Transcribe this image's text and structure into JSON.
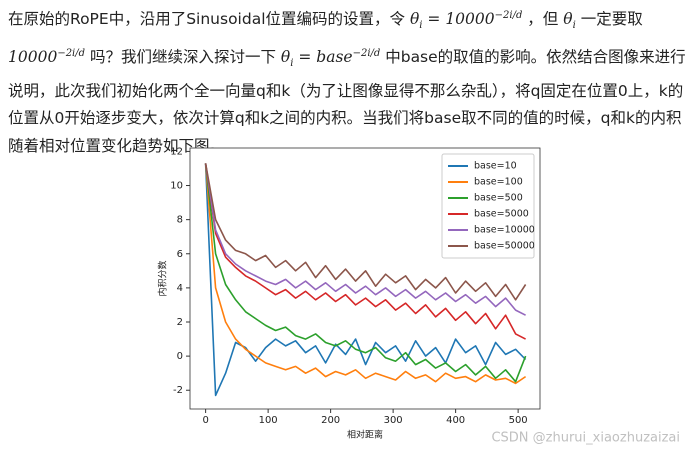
{
  "paragraph": {
    "segments": [
      {
        "text": "在原始的RoPE中，沿用了Sinusoidal位置编码的设置，令 "
      },
      {
        "m": "θ",
        "sub": "i"
      },
      {
        "m": " = 10000",
        "sup": "−2i/d"
      },
      {
        "text": " ，但 "
      },
      {
        "m": "θ",
        "sub": "i"
      },
      {
        "text": " 一定要取 "
      },
      {
        "m": "10000",
        "sup": "−2i/d"
      },
      {
        "text": " 吗？我们继续深入探讨一下 "
      },
      {
        "m": "θ",
        "sub": "i"
      },
      {
        "m": " = base",
        "sup": "−2i/d"
      },
      {
        "text": " 中base的取值的影响。依然结合图像来进行说明，此次我们初始化两个全一向量q和k（为了让图像显得不那么杂乱），将q固定在位置0上，k的位置从0开始逐步变大，依次计算q和k之间的内积。当我们将base取不同的值的时候，q和k的内积随着相对位置变化趋势如下图。"
      }
    ]
  },
  "watermark": "CSDN @zhurui_xiaozhuzaizai",
  "chart_data": {
    "type": "line",
    "xlabel": "相对距离",
    "ylabel": "内积分数",
    "x": [
      0,
      16,
      32,
      48,
      64,
      80,
      96,
      112,
      128,
      144,
      160,
      176,
      192,
      208,
      224,
      240,
      256,
      272,
      288,
      304,
      320,
      336,
      352,
      368,
      384,
      400,
      416,
      432,
      448,
      464,
      480,
      496,
      512
    ],
    "series": [
      {
        "name": "base=10",
        "color": "#1f77b4",
        "values": [
          11.3,
          -2.3,
          -1.0,
          0.8,
          0.5,
          -0.3,
          0.5,
          1.0,
          0.6,
          0.9,
          0.2,
          0.6,
          -0.4,
          0.7,
          0.1,
          1.0,
          -0.5,
          0.8,
          0.2,
          0.6,
          -0.3,
          0.9,
          0.0,
          0.5,
          -0.4,
          1.0,
          0.2,
          0.6,
          -0.5,
          0.8,
          0.1,
          0.4,
          -0.2
        ]
      },
      {
        "name": "base=100",
        "color": "#ff7f0e",
        "values": [
          11.3,
          4.0,
          2.0,
          1.0,
          0.4,
          0.0,
          -0.4,
          -0.6,
          -0.8,
          -0.6,
          -1.0,
          -0.7,
          -1.2,
          -0.9,
          -1.1,
          -0.8,
          -1.3,
          -1.0,
          -1.2,
          -1.4,
          -0.9,
          -1.3,
          -1.1,
          -1.5,
          -1.0,
          -1.3,
          -1.2,
          -1.5,
          -1.1,
          -1.4,
          -1.3,
          -1.6,
          -1.2
        ]
      },
      {
        "name": "base=500",
        "color": "#2ca02c",
        "values": [
          11.3,
          6.0,
          4.2,
          3.3,
          2.6,
          2.2,
          1.8,
          1.5,
          1.7,
          1.2,
          1.0,
          1.3,
          0.8,
          0.6,
          0.9,
          0.4,
          0.2,
          0.5,
          -0.1,
          -0.3,
          0.2,
          -0.5,
          -0.2,
          -0.7,
          -0.4,
          -0.9,
          -0.5,
          -1.1,
          -0.6,
          -1.3,
          -0.8,
          -1.5,
          0.0
        ]
      },
      {
        "name": "base=5000",
        "color": "#d62728",
        "values": [
          11.3,
          7.2,
          5.8,
          5.2,
          4.7,
          4.4,
          4.0,
          3.6,
          3.9,
          3.4,
          3.8,
          3.3,
          3.7,
          3.2,
          3.6,
          3.0,
          3.4,
          2.9,
          3.3,
          2.7,
          3.1,
          2.5,
          3.0,
          2.3,
          2.8,
          2.1,
          2.6,
          1.9,
          2.5,
          1.6,
          2.4,
          1.3,
          1.0
        ]
      },
      {
        "name": "base=10000",
        "color": "#9467bd",
        "values": [
          11.3,
          7.4,
          6.0,
          5.4,
          5.0,
          4.7,
          4.4,
          4.2,
          4.5,
          4.0,
          4.4,
          3.9,
          4.3,
          3.8,
          4.2,
          3.7,
          4.1,
          3.6,
          4.0,
          3.5,
          3.9,
          3.4,
          3.8,
          3.3,
          3.7,
          3.2,
          3.6,
          3.1,
          3.5,
          2.9,
          3.4,
          2.7,
          2.4
        ]
      },
      {
        "name": "base=50000",
        "color": "#8c564b",
        "values": [
          11.3,
          8.0,
          6.8,
          6.2,
          6.0,
          5.6,
          5.9,
          5.2,
          5.6,
          5.0,
          5.5,
          4.6,
          5.3,
          4.5,
          5.1,
          4.4,
          5.0,
          4.1,
          4.8,
          4.3,
          4.7,
          3.9,
          4.5,
          4.0,
          4.6,
          3.7,
          4.4,
          3.8,
          4.3,
          3.5,
          4.2,
          3.3,
          4.2
        ]
      }
    ],
    "xlim": [
      -25,
      535
    ],
    "ylim": [
      -3.1,
      12.2
    ],
    "xticks": [
      0,
      100,
      200,
      300,
      400,
      500
    ],
    "yticks": [
      -2,
      0,
      2,
      4,
      6,
      8,
      10,
      12
    ],
    "legend": "upper right"
  }
}
